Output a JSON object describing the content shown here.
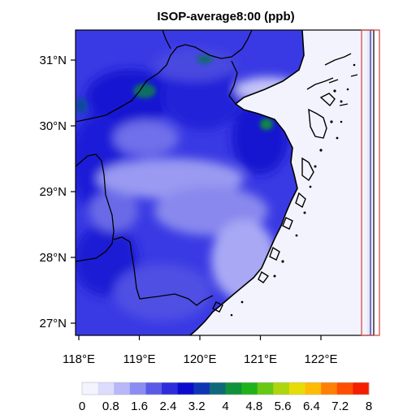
{
  "title": "ISOP-average8:00 (ppb)",
  "map": {
    "lat_ticks": [
      "31°N",
      "30°N",
      "29°N",
      "28°N",
      "27°N"
    ],
    "lon_ticks": [
      "118°E",
      "119°E",
      "120°E",
      "121°E",
      "122°E"
    ],
    "lat_values": [
      31,
      30,
      29,
      28,
      27
    ],
    "lon_values": [
      118,
      119,
      120,
      121,
      122
    ]
  },
  "colorbar": {
    "labels": [
      "0",
      "0.8",
      "1.6",
      "2.4",
      "3.2",
      "4",
      "4.8",
      "5.6",
      "6.4",
      "7.2",
      "8"
    ],
    "min": 0,
    "max": 8,
    "colors": [
      "#f4f4ff",
      "#dcdcff",
      "#b7b7fa",
      "#8c8cf2",
      "#5a5ae8",
      "#2d2ddc",
      "#0b0bcf",
      "#0e36b4",
      "#0e6a78",
      "#10923c",
      "#1fb21a",
      "#68c812",
      "#aed60c",
      "#e8dc08",
      "#ffbb05",
      "#ff8004",
      "#ff4d02",
      "#f41e00"
    ]
  },
  "colors": {
    "ocean": "#f3f3fd",
    "highlight_box": "#d04040",
    "border": "#000000"
  }
}
